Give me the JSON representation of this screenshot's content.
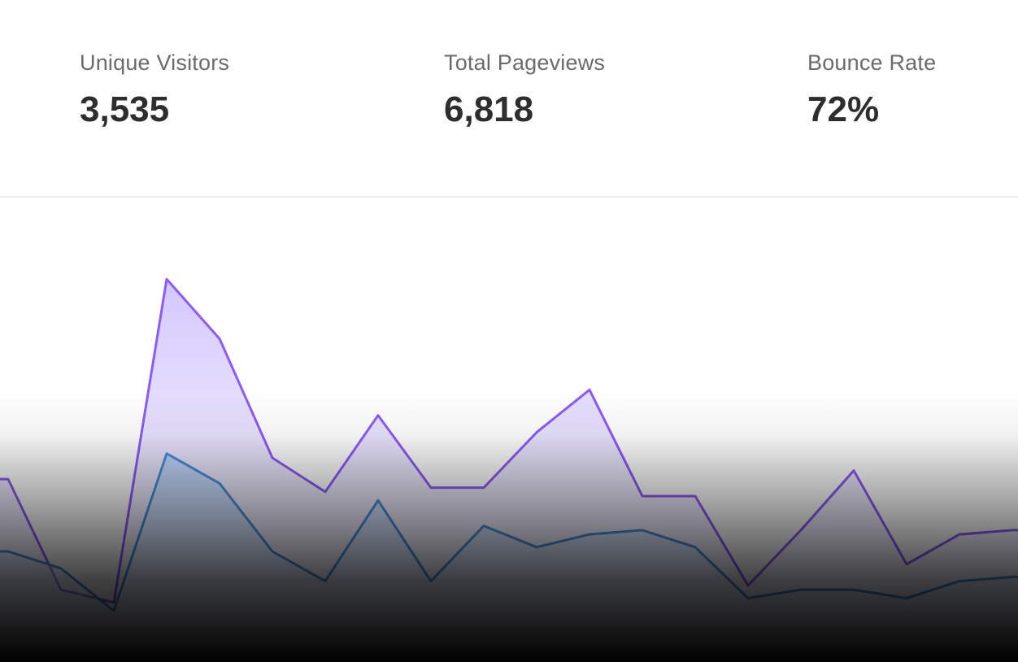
{
  "stats": [
    {
      "label": "Unique Visitors",
      "value": "3,535"
    },
    {
      "label": "Total Pageviews",
      "value": "6,818"
    },
    {
      "label": "Bounce Rate",
      "value": "72%"
    }
  ],
  "colors": {
    "pageviews_line": "#8b5cf6",
    "pageviews_fill": "#c4b5fd",
    "visitors_line": "#4a90d9",
    "visitors_fill": "#93c5fd",
    "divider": "#ececec",
    "label": "#6b6b6b",
    "value": "#2e2e2e"
  },
  "chart_data": {
    "type": "area",
    "title": "",
    "xlabel": "",
    "ylabel": "",
    "x": [
      0,
      1,
      2,
      3,
      4,
      5,
      6,
      7,
      8,
      9,
      10,
      11,
      12,
      13,
      14,
      15,
      16,
      17,
      18,
      19
    ],
    "ylim": [
      0,
      100
    ],
    "grid": false,
    "legend": "none",
    "series": [
      {
        "values": [
          43,
          17,
          14,
          90,
          76,
          48,
          40,
          58,
          41,
          41,
          54,
          64,
          39,
          39,
          18,
          31,
          45,
          23,
          30,
          31
        ]
      },
      {
        "values": [
          26,
          22,
          12,
          49,
          42,
          26,
          19,
          38,
          19,
          32,
          27,
          30,
          31,
          27,
          15,
          17,
          17,
          15,
          19,
          20
        ]
      }
    ],
    "overlay": "bottom dark gradient fade"
  }
}
